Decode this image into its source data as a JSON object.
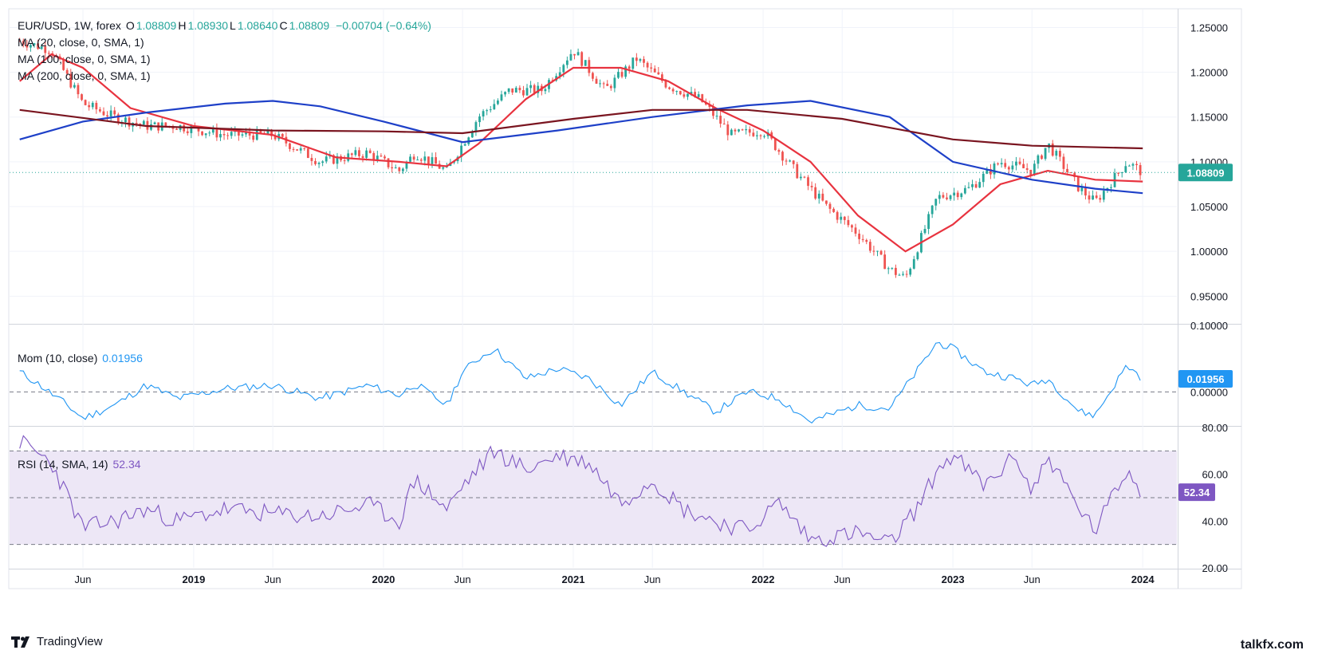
{
  "header": {
    "symbol": "EUR/USD, 1W, forex",
    "ohlc": [
      {
        "key": "O",
        "value": "1.08809"
      },
      {
        "key": "H",
        "value": "1.08930"
      },
      {
        "key": "L",
        "value": "1.08640"
      },
      {
        "key": "C",
        "value": "1.08809"
      }
    ],
    "change": "−0.00704 (−0.64%)"
  },
  "indicators": {
    "ma20": "MA (20, close, 0, SMA, 1)",
    "ma100": "MA (100, close, 0, SMA, 1)",
    "ma200": "MA (200, close, 0, SMA, 1)",
    "mom": "Mom (10, close)",
    "mom_value": "0.01956",
    "rsi": "RSI (14, SMA, 14)",
    "rsi_value": "52.34"
  },
  "last_price": "1.08809",
  "brand": {
    "left": "TradingView",
    "right": "talkfx.com"
  },
  "colors": {
    "up": "#26a69a",
    "down": "#ef5350",
    "ma20": "#e8333f",
    "ma100": "#1e40c8",
    "ma200": "#7a1520",
    "mom": "#2196f3",
    "rsi": "#7e57c2",
    "rsi_band": "#ede7f6"
  },
  "chart_data": [
    {
      "type": "candlestick",
      "name": "EUR/USD, 1W",
      "x_ticks": [
        "Jun",
        "2019",
        "Jun",
        "2020",
        "Jun",
        "2021",
        "Jun",
        "2022",
        "Jun",
        "2023",
        "Jun",
        "2024"
      ],
      "y_ticks": [
        "1.25000",
        "1.20000",
        "1.15000",
        "1.10000",
        "1.05000",
        "1.00000",
        "0.95000"
      ],
      "ylim": [
        0.92,
        1.27
      ],
      "price_path": [
        [
          "2018-02",
          1.235
        ],
        [
          "2018-04",
          1.225
        ],
        [
          "2018-06",
          1.165
        ],
        [
          "2018-08",
          1.15
        ],
        [
          "2018-10",
          1.14
        ],
        [
          "2018-12",
          1.14
        ],
        [
          "2019-03",
          1.13
        ],
        [
          "2019-06",
          1.13
        ],
        [
          "2019-09",
          1.1
        ],
        [
          "2019-12",
          1.11
        ],
        [
          "2020-02",
          1.09
        ],
        [
          "2020-03",
          1.11
        ],
        [
          "2020-05",
          1.09
        ],
        [
          "2020-07",
          1.15
        ],
        [
          "2020-09",
          1.18
        ],
        [
          "2020-11",
          1.18
        ],
        [
          "2021-01",
          1.225
        ],
        [
          "2021-03",
          1.18
        ],
        [
          "2021-05",
          1.215
        ],
        [
          "2021-07",
          1.185
        ],
        [
          "2021-09",
          1.17
        ],
        [
          "2021-11",
          1.13
        ],
        [
          "2022-01",
          1.135
        ],
        [
          "2022-03",
          1.09
        ],
        [
          "2022-05",
          1.05
        ],
        [
          "2022-07",
          1.02
        ],
        [
          "2022-09",
          0.98
        ],
        [
          "2022-10",
          0.97
        ],
        [
          "2022-12",
          1.06
        ],
        [
          "2023-02",
          1.07
        ],
        [
          "2023-04",
          1.1
        ],
        [
          "2023-06",
          1.09
        ],
        [
          "2023-07",
          1.12
        ],
        [
          "2023-09",
          1.07
        ],
        [
          "2023-10",
          1.055
        ],
        [
          "2023-12",
          1.1
        ],
        [
          "2024-01",
          1.088
        ]
      ],
      "series": [
        {
          "name": "MA 20",
          "values": [
            [
              "2018-02",
              1.19
            ],
            [
              "2018-04",
              1.22
            ],
            [
              "2018-06",
              1.205
            ],
            [
              "2018-09",
              1.16
            ],
            [
              "2019-01",
              1.14
            ],
            [
              "2019-06",
              1.13
            ],
            [
              "2019-10",
              1.105
            ],
            [
              "2020-02",
              1.1
            ],
            [
              "2020-05",
              1.095
            ],
            [
              "2020-07",
              1.12
            ],
            [
              "2020-10",
              1.17
            ],
            [
              "2021-01",
              1.205
            ],
            [
              "2021-04",
              1.205
            ],
            [
              "2021-07",
              1.19
            ],
            [
              "2021-10",
              1.16
            ],
            [
              "2022-01",
              1.135
            ],
            [
              "2022-04",
              1.1
            ],
            [
              "2022-07",
              1.04
            ],
            [
              "2022-10",
              1.0
            ],
            [
              "2023-01",
              1.03
            ],
            [
              "2023-04",
              1.075
            ],
            [
              "2023-07",
              1.09
            ],
            [
              "2023-10",
              1.08
            ],
            [
              "2024-01",
              1.078
            ]
          ]
        },
        {
          "name": "MA 100",
          "values": [
            [
              "2018-02",
              1.125
            ],
            [
              "2018-06",
              1.145
            ],
            [
              "2018-10",
              1.155
            ],
            [
              "2019-03",
              1.165
            ],
            [
              "2019-06",
              1.168
            ],
            [
              "2019-09",
              1.162
            ],
            [
              "2020-01",
              1.145
            ],
            [
              "2020-06",
              1.122
            ],
            [
              "2020-12",
              1.135
            ],
            [
              "2021-06",
              1.15
            ],
            [
              "2021-12",
              1.163
            ],
            [
              "2022-04",
              1.168
            ],
            [
              "2022-09",
              1.15
            ],
            [
              "2023-01",
              1.1
            ],
            [
              "2023-06",
              1.08
            ],
            [
              "2023-10",
              1.07
            ],
            [
              "2024-01",
              1.065
            ]
          ]
        },
        {
          "name": "MA 200",
          "values": [
            [
              "2018-02",
              1.158
            ],
            [
              "2018-10",
              1.14
            ],
            [
              "2019-06",
              1.135
            ],
            [
              "2020-01",
              1.134
            ],
            [
              "2020-06",
              1.132
            ],
            [
              "2021-01",
              1.148
            ],
            [
              "2021-06",
              1.158
            ],
            [
              "2021-12",
              1.158
            ],
            [
              "2022-06",
              1.148
            ],
            [
              "2023-01",
              1.125
            ],
            [
              "2023-06",
              1.118
            ],
            [
              "2024-01",
              1.115
            ]
          ]
        }
      ]
    },
    {
      "type": "line",
      "name": "Mom (10, close)",
      "y_ticks": [
        "0.10000",
        "0.00000"
      ],
      "ylim": [
        -0.05,
        0.1
      ],
      "values": [
        [
          "2018-02",
          0.03
        ],
        [
          "2018-03",
          0.015
        ],
        [
          "2018-05",
          -0.02
        ],
        [
          "2018-06",
          -0.04
        ],
        [
          "2018-08",
          -0.02
        ],
        [
          "2018-10",
          0.01
        ],
        [
          "2018-12",
          -0.01
        ],
        [
          "2019-03",
          0.005
        ],
        [
          "2019-06",
          0.01
        ],
        [
          "2019-09",
          -0.01
        ],
        [
          "2019-12",
          0.01
        ],
        [
          "2020-02",
          -0.005
        ],
        [
          "2020-03",
          0.012
        ],
        [
          "2020-05",
          -0.02
        ],
        [
          "2020-06",
          0.03
        ],
        [
          "2020-07",
          0.05
        ],
        [
          "2020-08",
          0.065
        ],
        [
          "2020-10",
          0.02
        ],
        [
          "2020-12",
          0.035
        ],
        [
          "2021-02",
          0.02
        ],
        [
          "2021-04",
          -0.02
        ],
        [
          "2021-06",
          0.03
        ],
        [
          "2021-08",
          0.0
        ],
        [
          "2021-10",
          -0.03
        ],
        [
          "2021-12",
          0.0
        ],
        [
          "2022-02",
          -0.01
        ],
        [
          "2022-04",
          -0.045
        ],
        [
          "2022-07",
          -0.02
        ],
        [
          "2022-09",
          -0.025
        ],
        [
          "2022-11",
          0.04
        ],
        [
          "2022-12",
          0.075
        ],
        [
          "2023-01",
          0.065
        ],
        [
          "2023-03",
          0.03
        ],
        [
          "2023-05",
          0.02
        ],
        [
          "2023-06",
          0.01
        ],
        [
          "2023-07",
          0.02
        ],
        [
          "2023-09",
          -0.03
        ],
        [
          "2023-10",
          -0.035
        ],
        [
          "2023-12",
          0.04
        ],
        [
          "2024-01",
          0.02
        ]
      ]
    },
    {
      "type": "line",
      "name": "RSI (14, SMA, 14)",
      "y_ticks": [
        "80.00",
        "60.00",
        "40.00",
        "20.00"
      ],
      "ylim": [
        20,
        80
      ],
      "bands": [
        70,
        50,
        30
      ],
      "values": [
        [
          "2018-02",
          74
        ],
        [
          "2018-04",
          65
        ],
        [
          "2018-06",
          37
        ],
        [
          "2018-08",
          40
        ],
        [
          "2018-10",
          45
        ],
        [
          "2018-12",
          40
        ],
        [
          "2019-03",
          45
        ],
        [
          "2019-06",
          43
        ],
        [
          "2019-09",
          42
        ],
        [
          "2019-12",
          47
        ],
        [
          "2020-02",
          40
        ],
        [
          "2020-03",
          58
        ],
        [
          "2020-05",
          45
        ],
        [
          "2020-06",
          55
        ],
        [
          "2020-08",
          70
        ],
        [
          "2020-10",
          62
        ],
        [
          "2020-12",
          68
        ],
        [
          "2021-02",
          65
        ],
        [
          "2021-04",
          48
        ],
        [
          "2021-06",
          58
        ],
        [
          "2021-08",
          45
        ],
        [
          "2021-10",
          40
        ],
        [
          "2021-12",
          36
        ],
        [
          "2022-02",
          48
        ],
        [
          "2022-04",
          32
        ],
        [
          "2022-07",
          35
        ],
        [
          "2022-09",
          30
        ],
        [
          "2022-11",
          48
        ],
        [
          "2022-12",
          62
        ],
        [
          "2023-01",
          68
        ],
        [
          "2023-03",
          55
        ],
        [
          "2023-05",
          68
        ],
        [
          "2023-06",
          52
        ],
        [
          "2023-07",
          68
        ],
        [
          "2023-09",
          45
        ],
        [
          "2023-10",
          36
        ],
        [
          "2023-12",
          62
        ],
        [
          "2024-01",
          52
        ]
      ]
    }
  ]
}
